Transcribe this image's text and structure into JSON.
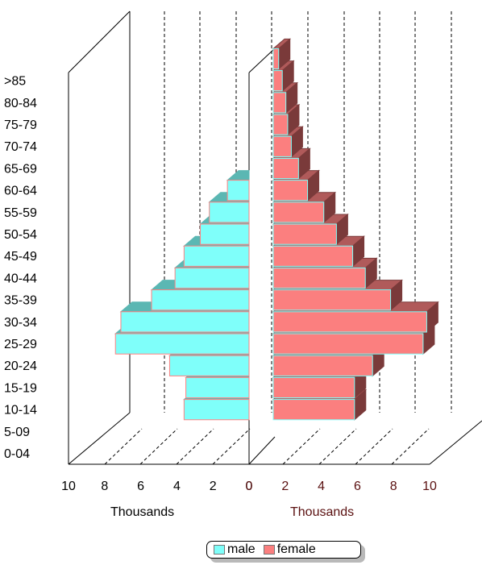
{
  "chart_data": {
    "type": "bar",
    "subtype": "population-pyramid-3d",
    "categories": [
      "0-04",
      "5-09",
      "10-14",
      "15-19",
      "20-24",
      "25-29",
      "30-34",
      "35-39",
      "40-44",
      "45-49",
      "50-54",
      "55-59",
      "60-64",
      "65-69",
      "70-74",
      "75-79",
      "80-84",
      ">85"
    ],
    "series": [
      {
        "name": "male",
        "values": [
          0,
          3.6,
          3.5,
          4.4,
          7.4,
          7.1,
          5.4,
          4.1,
          3.6,
          2.7,
          2.2,
          1.2,
          0,
          0,
          0,
          0,
          0,
          0
        ]
      },
      {
        "name": "female",
        "values": [
          0,
          4.5,
          4.5,
          5.5,
          8.3,
          8.5,
          6.5,
          5.1,
          4.4,
          3.5,
          2.8,
          1.9,
          1.4,
          1.0,
          0.8,
          0.7,
          0.5,
          0.3
        ]
      }
    ],
    "left_axis": {
      "ticks": [
        "10",
        "8",
        "6",
        "4",
        "2",
        "0"
      ],
      "unit": "Thousands",
      "range": [
        0,
        10
      ],
      "direction": "reversed"
    },
    "right_axis": {
      "ticks": [
        "0",
        "2",
        "4",
        "6",
        "8",
        "10"
      ],
      "unit": "Thousands",
      "range": [
        0,
        10
      ]
    },
    "grid": true,
    "legend_position": "bottom",
    "colors": {
      "male": "#7ffffa",
      "female": "#fb7f7f",
      "male_edge": "#ff8080",
      "female_edge": "#7ffffa"
    }
  },
  "legend": {
    "male_label": "male",
    "female_label": "female"
  }
}
